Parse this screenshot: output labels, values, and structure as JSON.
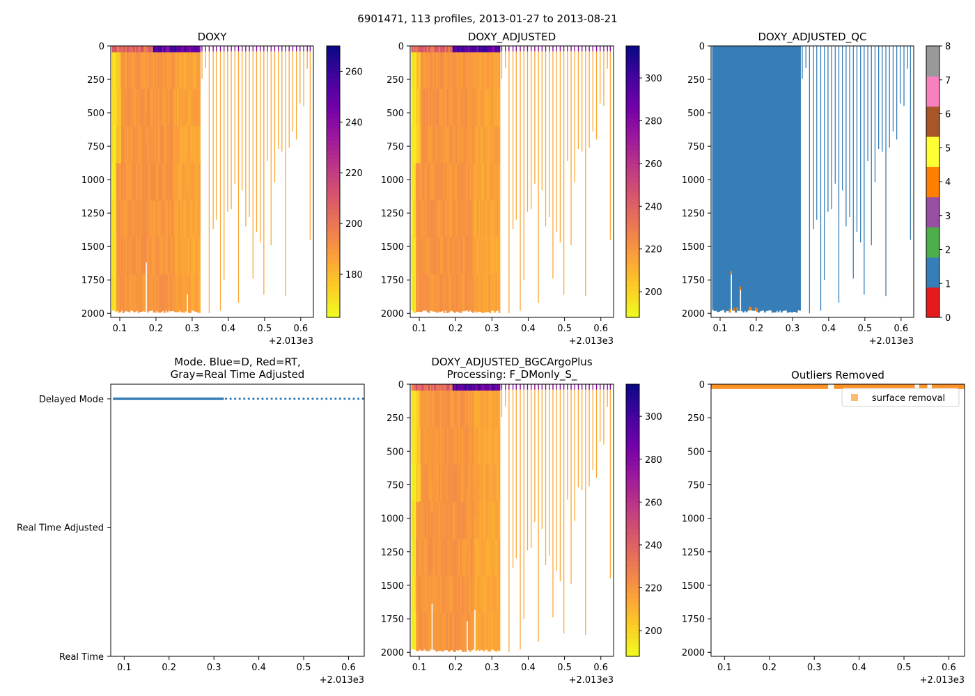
{
  "suptitle": "6901471, 113 profiles, 2013-01-27 to 2013-08-21",
  "colors": {
    "blue": "#377eb8",
    "orange": "#ff7f00",
    "plasma": [
      "#f0f921",
      "#fdca26",
      "#fb9f3a",
      "#ed7953",
      "#d8576b",
      "#bd3786",
      "#9c179e",
      "#7201a8",
      "#46039f",
      "#0d0887"
    ],
    "qc_classes": [
      "#e41a1c",
      "#377eb8",
      "#4daf4a",
      "#984ea3",
      "#ff7f00",
      "#ffff33",
      "#a65628",
      "#f781bf",
      "#999999"
    ]
  },
  "chart_data": [
    {
      "id": "doxy",
      "type": "heatmap",
      "title": "DOXY",
      "x_offset_label": "+2.013e3",
      "xlim": [
        0.075,
        0.635
      ],
      "ylim": [
        2030,
        0
      ],
      "xticks": [
        "0.1",
        "0.2",
        "0.3",
        "0.4",
        "0.5",
        "0.6"
      ],
      "yticks": [
        "0",
        "250",
        "500",
        "750",
        "1000",
        "1250",
        "1500",
        "1750",
        "2000"
      ],
      "colorbar": {
        "range": [
          163,
          270
        ],
        "ticks": [
          "180",
          "200",
          "220",
          "240",
          "260"
        ]
      },
      "dense_x": [
        0.078,
        0.322
      ],
      "sparse_profiles": [
        [
          0.327,
          245
        ],
        [
          0.337,
          165
        ],
        [
          0.347,
          2000
        ],
        [
          0.358,
          1370
        ],
        [
          0.367,
          1300
        ],
        [
          0.378,
          1980
        ],
        [
          0.388,
          1750
        ],
        [
          0.398,
          1240
        ],
        [
          0.408,
          1220
        ],
        [
          0.418,
          1030
        ],
        [
          0.428,
          1920
        ],
        [
          0.438,
          1080
        ],
        [
          0.448,
          1350
        ],
        [
          0.458,
          1280
        ],
        [
          0.468,
          1740
        ],
        [
          0.478,
          1390
        ],
        [
          0.488,
          1470
        ],
        [
          0.498,
          1860
        ],
        [
          0.508,
          860
        ],
        [
          0.518,
          1490
        ],
        [
          0.528,
          1020
        ],
        [
          0.538,
          770
        ],
        [
          0.548,
          790
        ],
        [
          0.558,
          1870
        ],
        [
          0.568,
          760
        ],
        [
          0.578,
          640
        ],
        [
          0.588,
          700
        ],
        [
          0.598,
          430
        ],
        [
          0.608,
          450
        ],
        [
          0.618,
          170
        ],
        [
          0.626,
          1450
        ]
      ]
    },
    {
      "id": "doxy_adj",
      "type": "heatmap",
      "title": "DOXY_ADJUSTED",
      "x_offset_label": "+2.013e3",
      "xlim": [
        0.075,
        0.635
      ],
      "ylim": [
        2030,
        0
      ],
      "xticks": [
        "0.1",
        "0.2",
        "0.3",
        "0.4",
        "0.5",
        "0.6"
      ],
      "yticks": [
        "0",
        "250",
        "500",
        "750",
        "1000",
        "1250",
        "1500",
        "1750",
        "2000"
      ],
      "colorbar": {
        "range": [
          188,
          315
        ],
        "ticks": [
          "200",
          "220",
          "240",
          "260",
          "280",
          "300"
        ]
      },
      "dense_x": [
        0.078,
        0.322
      ],
      "sparse_profiles": [
        [
          0.327,
          245
        ],
        [
          0.337,
          165
        ],
        [
          0.347,
          2000
        ],
        [
          0.358,
          1370
        ],
        [
          0.367,
          1300
        ],
        [
          0.378,
          1980
        ],
        [
          0.388,
          1750
        ],
        [
          0.398,
          1240
        ],
        [
          0.408,
          1220
        ],
        [
          0.418,
          1030
        ],
        [
          0.428,
          1920
        ],
        [
          0.438,
          1080
        ],
        [
          0.448,
          1350
        ],
        [
          0.458,
          1280
        ],
        [
          0.468,
          1740
        ],
        [
          0.478,
          1390
        ],
        [
          0.488,
          1470
        ],
        [
          0.498,
          1860
        ],
        [
          0.508,
          860
        ],
        [
          0.518,
          1490
        ],
        [
          0.528,
          1020
        ],
        [
          0.538,
          770
        ],
        [
          0.548,
          790
        ],
        [
          0.558,
          1870
        ],
        [
          0.568,
          760
        ],
        [
          0.578,
          640
        ],
        [
          0.588,
          700
        ],
        [
          0.598,
          430
        ],
        [
          0.608,
          450
        ],
        [
          0.618,
          170
        ],
        [
          0.626,
          1450
        ]
      ]
    },
    {
      "id": "doxy_qc",
      "type": "heatmap",
      "title": "DOXY_ADJUSTED_QC",
      "x_offset_label": "+2.013e3",
      "xlim": [
        0.075,
        0.635
      ],
      "ylim": [
        2030,
        0
      ],
      "xticks": [
        "0.1",
        "0.2",
        "0.3",
        "0.4",
        "0.5",
        "0.6"
      ],
      "yticks": [
        "0",
        "250",
        "500",
        "750",
        "1000",
        "1250",
        "1500",
        "1750",
        "2000"
      ],
      "colorbar": {
        "range": [
          0,
          8
        ],
        "ticks": [
          "0",
          "1",
          "2",
          "3",
          "4",
          "5",
          "6",
          "7",
          "8"
        ]
      },
      "dense_x": [
        0.078,
        0.322
      ],
      "dominant_flag": 1,
      "sparse_profiles": [
        [
          0.327,
          245
        ],
        [
          0.337,
          165
        ],
        [
          0.347,
          2000
        ],
        [
          0.358,
          1370
        ],
        [
          0.367,
          1300
        ],
        [
          0.378,
          1980
        ],
        [
          0.388,
          1750
        ],
        [
          0.398,
          1240
        ],
        [
          0.408,
          1220
        ],
        [
          0.418,
          1030
        ],
        [
          0.428,
          1920
        ],
        [
          0.438,
          1080
        ],
        [
          0.448,
          1350
        ],
        [
          0.458,
          1280
        ],
        [
          0.468,
          1740
        ],
        [
          0.478,
          1390
        ],
        [
          0.488,
          1470
        ],
        [
          0.498,
          1860
        ],
        [
          0.508,
          860
        ],
        [
          0.518,
          1490
        ],
        [
          0.528,
          1020
        ],
        [
          0.538,
          770
        ],
        [
          0.548,
          790
        ],
        [
          0.558,
          1870
        ],
        [
          0.568,
          760
        ],
        [
          0.578,
          640
        ],
        [
          0.588,
          700
        ],
        [
          0.598,
          430
        ],
        [
          0.608,
          450
        ],
        [
          0.618,
          170
        ],
        [
          0.626,
          1450
        ]
      ]
    },
    {
      "id": "mode",
      "type": "scatter",
      "title_line1": "Mode. Blue=D, Red=RT,",
      "title_line2": "Gray=Real Time Adjusted",
      "x_offset_label": "+2.013e3",
      "xlim": [
        0.07,
        0.635
      ],
      "xticks": [
        "0.1",
        "0.2",
        "0.3",
        "0.4",
        "0.5",
        "0.6"
      ],
      "yticks": [
        "Delayed Mode",
        "Real Time Adjusted",
        "Real Time"
      ],
      "series": [
        {
          "name": "Delayed Mode",
          "x_range": [
            0.075,
            0.322
          ],
          "dense": true
        },
        {
          "name": "Delayed Mode (sparse)",
          "x_range": [
            0.327,
            0.632
          ],
          "dense": false
        }
      ]
    },
    {
      "id": "doxy_bgc",
      "type": "heatmap",
      "title_line1": "DOXY_ADJUSTED_BGCArgoPlus",
      "title_line2": "Processing: F_DMonly_S_",
      "x_offset_label": "+2.013e3",
      "xlim": [
        0.075,
        0.635
      ],
      "ylim": [
        2030,
        0
      ],
      "xticks": [
        "0.1",
        "0.2",
        "0.3",
        "0.4",
        "0.5",
        "0.6"
      ],
      "yticks": [
        "0",
        "250",
        "500",
        "750",
        "1000",
        "1250",
        "1500",
        "1750",
        "2000"
      ],
      "colorbar": {
        "range": [
          188,
          315
        ],
        "ticks": [
          "200",
          "220",
          "240",
          "260",
          "280",
          "300"
        ]
      },
      "dense_x": [
        0.078,
        0.322
      ],
      "sparse_profiles": [
        [
          0.327,
          245
        ],
        [
          0.337,
          165
        ],
        [
          0.347,
          2000
        ],
        [
          0.358,
          1370
        ],
        [
          0.367,
          1300
        ],
        [
          0.378,
          1980
        ],
        [
          0.388,
          1750
        ],
        [
          0.398,
          1240
        ],
        [
          0.408,
          1220
        ],
        [
          0.418,
          1030
        ],
        [
          0.428,
          1920
        ],
        [
          0.438,
          1080
        ],
        [
          0.448,
          1350
        ],
        [
          0.458,
          1280
        ],
        [
          0.468,
          1740
        ],
        [
          0.478,
          1390
        ],
        [
          0.488,
          1470
        ],
        [
          0.498,
          1860
        ],
        [
          0.508,
          860
        ],
        [
          0.518,
          1490
        ],
        [
          0.528,
          1020
        ],
        [
          0.538,
          770
        ],
        [
          0.548,
          790
        ],
        [
          0.558,
          1870
        ],
        [
          0.568,
          760
        ],
        [
          0.578,
          640
        ],
        [
          0.588,
          700
        ],
        [
          0.598,
          430
        ],
        [
          0.608,
          450
        ],
        [
          0.618,
          170
        ],
        [
          0.626,
          1450
        ]
      ]
    },
    {
      "id": "outliers",
      "type": "scatter",
      "title": "Outliers Removed",
      "x_offset_label": "+2.013e3",
      "xlim": [
        0.07,
        0.635
      ],
      "ylim": [
        2030,
        0
      ],
      "xticks": [
        "0.1",
        "0.2",
        "0.3",
        "0.4",
        "0.5",
        "0.6"
      ],
      "yticks": [
        "0",
        "250",
        "500",
        "750",
        "1000",
        "1250",
        "1500",
        "1750",
        "2000"
      ],
      "legend": {
        "label": "surface removal",
        "placement": "upper-right"
      },
      "surface_removal_x_ranges": [
        [
          0.07,
          0.331
        ],
        [
          0.344,
          0.524
        ],
        [
          0.534,
          0.552
        ],
        [
          0.562,
          0.635
        ]
      ],
      "surface_removal_depth": [
        0,
        15
      ]
    }
  ]
}
